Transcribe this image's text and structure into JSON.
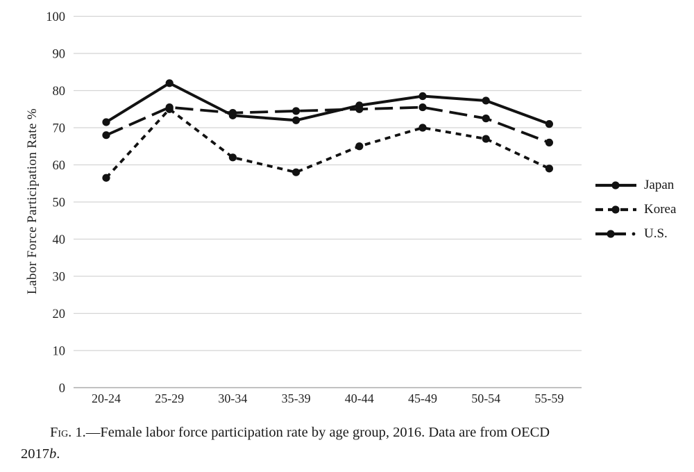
{
  "figure": {
    "caption": {
      "fig_label": "Fig. 1.",
      "dash": "—",
      "line1": "Female labor force participation rate by age group, 2016. Data are from OECD",
      "line2_year": "2017",
      "line2_italic": "b",
      "line2_period": "."
    }
  },
  "chart_data": {
    "type": "line",
    "title": "",
    "xlabel": "",
    "ylabel": "Labor Force Participation Rate %",
    "ylim": [
      0,
      100
    ],
    "ytick_step": 10,
    "grid": true,
    "legend_position": "right",
    "categories": [
      "20-24",
      "25-29",
      "30-34",
      "35-39",
      "40-44",
      "45-49",
      "50-54",
      "55-59"
    ],
    "series": [
      {
        "name": "Japan",
        "dash": "solid",
        "values": [
          71.5,
          82.0,
          73.3,
          72.0,
          76.0,
          78.5,
          77.3,
          71.0
        ]
      },
      {
        "name": "Korea",
        "dash": "short-dash",
        "values": [
          56.5,
          75.0,
          62.0,
          58.0,
          65.0,
          70.0,
          67.0,
          59.0
        ]
      },
      {
        "name": "U.S.",
        "dash": "long-dash",
        "values": [
          68.0,
          75.5,
          74.0,
          74.5,
          75.0,
          75.5,
          72.5,
          66.0
        ]
      }
    ]
  },
  "colors": {
    "line": "#121212",
    "grid": "#d4d4d4",
    "axis": "#ababab",
    "text": "#242424"
  }
}
